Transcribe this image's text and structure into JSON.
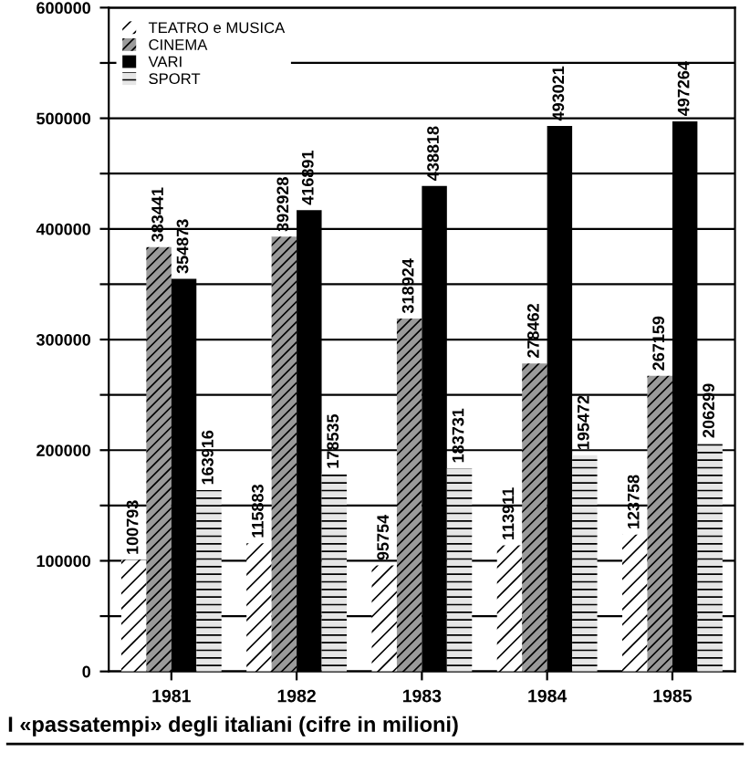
{
  "chart_data": {
    "type": "bar",
    "categories": [
      "1981",
      "1982",
      "1983",
      "1984",
      "1985"
    ],
    "series": [
      {
        "name": "TEATRO e MUSICA",
        "color": "#ffffff",
        "values": [
          100793,
          115883,
          95754,
          113911,
          123758
        ]
      },
      {
        "name": "CINEMA",
        "color": "#9a9a9a",
        "values": [
          383441,
          392928,
          318924,
          278462,
          267159
        ]
      },
      {
        "name": "VARI",
        "color": "#000000",
        "values": [
          354873,
          416891,
          438818,
          493021,
          497264
        ]
      },
      {
        "name": "SPORT",
        "color": "#e6e6e6",
        "values": [
          163916,
          178535,
          183731,
          195472,
          206299
        ]
      }
    ],
    "ylim": [
      0,
      600000
    ],
    "yticks": [
      0,
      {
        "value": 50000,
        "label": null
      },
      100000,
      {
        "value": 150000,
        "label": null
      },
      200000,
      {
        "value": 250000,
        "label": null
      },
      300000,
      {
        "value": 350000,
        "label": null
      },
      400000,
      {
        "value": 450000,
        "label": null
      },
      500000,
      {
        "value": 550000,
        "label": null
      },
      600000
    ],
    "grid": "y",
    "legend": "top left",
    "data_labels": true,
    "annotations": [
      "I «passatempi» degli italiani (cifre in milioni)"
    ]
  }
}
